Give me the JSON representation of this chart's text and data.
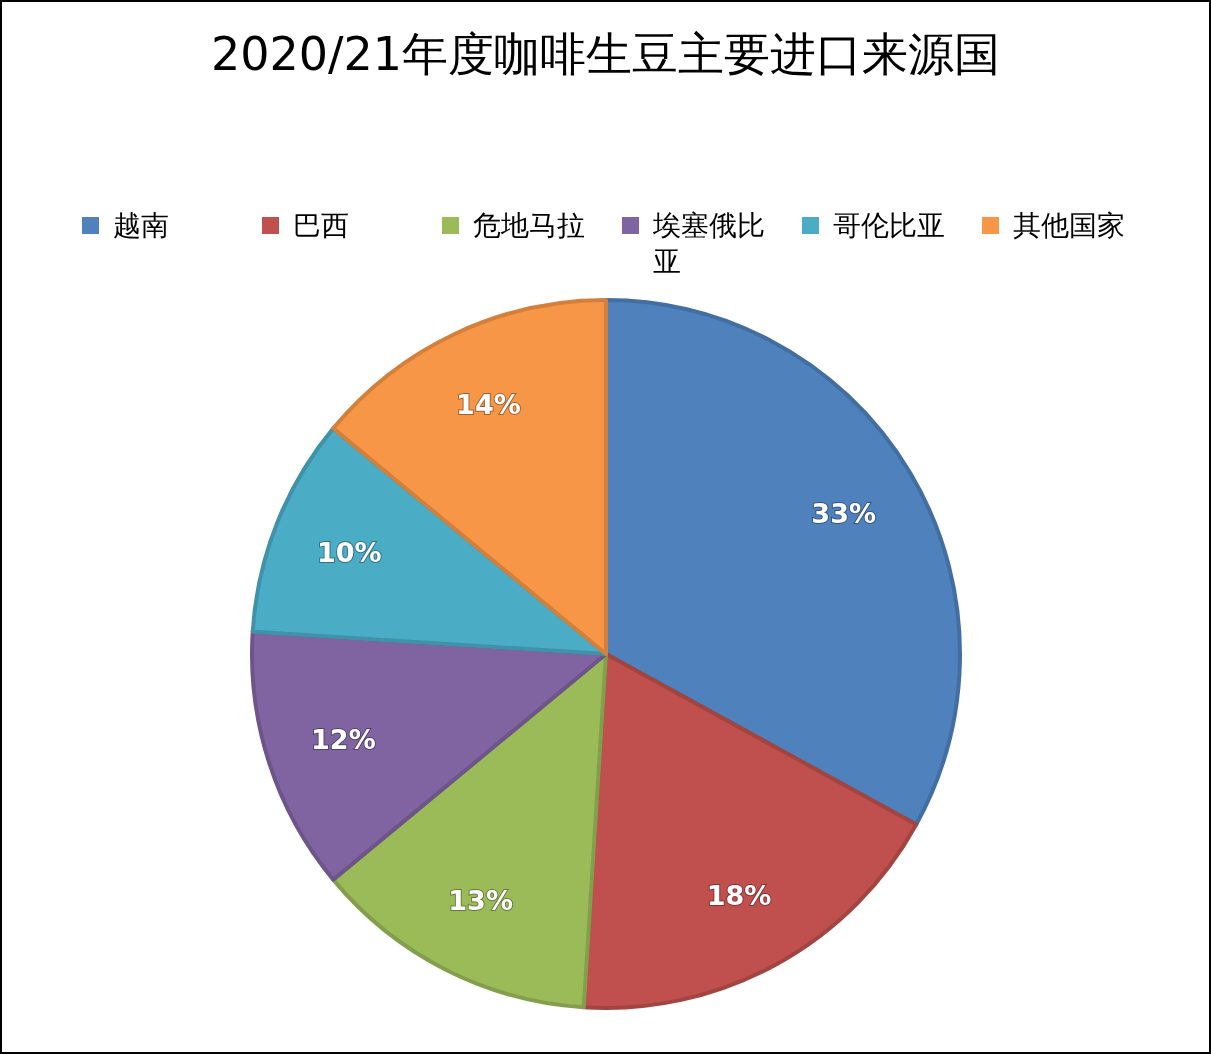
{
  "chart_data": {
    "type": "pie",
    "title": "2020/21年度咖啡生豆主要进口来源国",
    "categories": [
      "越南",
      "巴西",
      "危地马拉",
      "埃塞俄比亚",
      "哥伦比亚",
      "其他国家"
    ],
    "values": [
      33,
      18,
      13,
      12,
      10,
      14
    ],
    "colors": [
      "#4f81bd",
      "#c0504d",
      "#9bbb59",
      "#8064a2",
      "#4bacc6",
      "#f79646"
    ],
    "value_labels": [
      "33%",
      "18%",
      "13%",
      "12%",
      "10%",
      "14%"
    ],
    "legend": "top"
  }
}
